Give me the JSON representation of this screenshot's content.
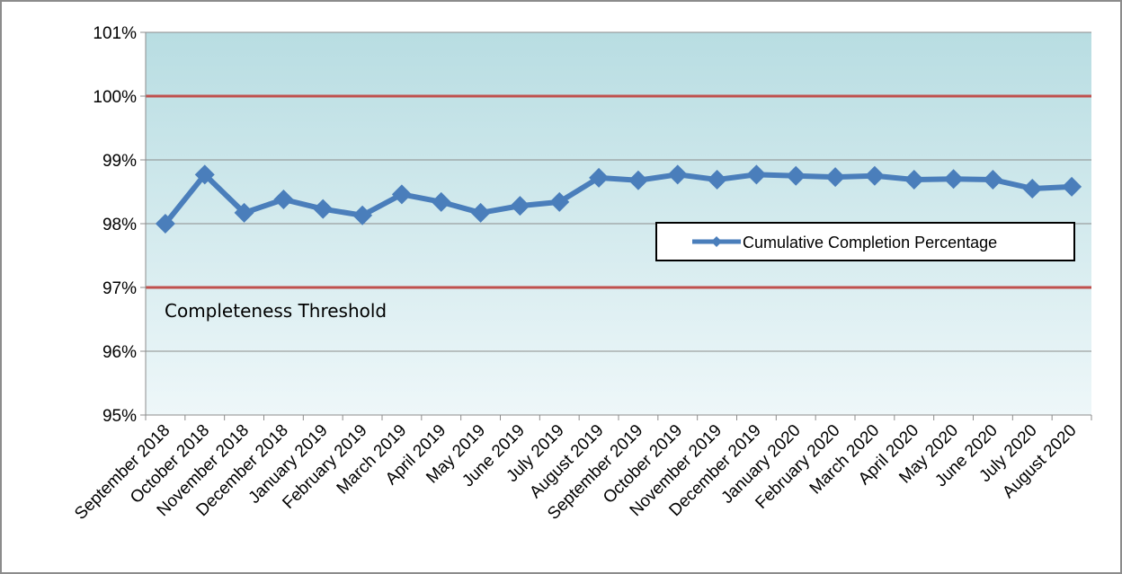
{
  "chart_data": {
    "type": "line",
    "categories": [
      "September 2018",
      "October 2018",
      "November 2018",
      "December 2018",
      "January 2019",
      "February 2019",
      "March 2019",
      "April 2019",
      "May 2019",
      "June 2019",
      "July 2019",
      "August 2019",
      "September 2019",
      "October 2019",
      "November 2019",
      "December 2019",
      "January 2020",
      "February 2020",
      "March 2020",
      "April 2020",
      "May 2020",
      "June 2020",
      "July 2020",
      "August 2020"
    ],
    "series": [
      {
        "name": "Cumulative Completion Percentage",
        "color": "#4a7ebb",
        "values": [
          98.0,
          98.77,
          98.17,
          98.38,
          98.23,
          98.13,
          98.46,
          98.34,
          98.17,
          98.28,
          98.34,
          98.72,
          98.68,
          98.77,
          98.69,
          98.77,
          98.75,
          98.73,
          98.75,
          98.69,
          98.7,
          98.69,
          98.55,
          98.58
        ]
      }
    ],
    "ylim": [
      95,
      101
    ],
    "yticks": [
      {
        "value": 95,
        "label": "95%"
      },
      {
        "value": 96,
        "label": "96%"
      },
      {
        "value": 97,
        "label": "97%"
      },
      {
        "value": 98,
        "label": "98%"
      },
      {
        "value": 99,
        "label": "99%"
      },
      {
        "value": 100,
        "label": "100%"
      },
      {
        "value": 101,
        "label": "101%"
      }
    ],
    "grid": true,
    "reference_lines": [
      100,
      97
    ],
    "reference_color": "#c0504d",
    "annotation": "Completeness Threshold",
    "legend": "right"
  }
}
